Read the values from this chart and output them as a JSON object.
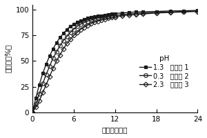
{
  "title": "",
  "xlabel": "时间（小时）",
  "ylabel": "回收率（%）",
  "xlim": [
    0,
    24
  ],
  "ylim": [
    0,
    105
  ],
  "xticks": [
    0,
    6,
    12,
    18,
    24
  ],
  "yticks": [
    0,
    25,
    50,
    75,
    100
  ],
  "legend_title": "pH",
  "series": [
    {
      "label": "1.3   实施例 1",
      "marker": "s",
      "color": "#1a1a1a",
      "fillstyle": "full",
      "markersize": 3.5,
      "markerfacecolor": "#888888",
      "linewidth": 1.0,
      "x": [
        0,
        0.5,
        1,
        1.5,
        2,
        2.5,
        3,
        3.5,
        4,
        4.5,
        5,
        5.5,
        6,
        6.5,
        7,
        7.5,
        8,
        8.5,
        9,
        9.5,
        10,
        10.5,
        11,
        11.5,
        12,
        13,
        14,
        15,
        16,
        18,
        20,
        22,
        24
      ],
      "y": [
        0,
        14,
        27,
        38,
        47,
        55,
        62,
        68,
        73,
        77,
        81,
        84,
        86,
        88,
        89.5,
        91,
        92,
        93,
        93.5,
        94,
        94.5,
        95,
        95.5,
        96,
        96.5,
        97,
        97.5,
        98,
        98.2,
        98.5,
        99,
        99.2,
        99.5
      ]
    },
    {
      "label": "0.3   实施例 2",
      "marker": "o",
      "color": "#1a1a1a",
      "fillstyle": "none",
      "markersize": 4,
      "markerfacecolor": "none",
      "linewidth": 1.0,
      "x": [
        0,
        0.5,
        1,
        1.5,
        2,
        2.5,
        3,
        3.5,
        4,
        4.5,
        5,
        5.5,
        6,
        6.5,
        7,
        7.5,
        8,
        8.5,
        9,
        9.5,
        10,
        10.5,
        11,
        11.5,
        12,
        13,
        14,
        15,
        16,
        18,
        20,
        22,
        24
      ],
      "y": [
        0,
        8,
        18,
        28,
        37,
        45,
        53,
        59,
        65,
        70,
        74,
        78,
        81,
        84,
        86,
        87.5,
        89,
        90,
        91,
        92,
        92.5,
        93,
        93.5,
        94,
        94.5,
        95.5,
        96,
        96.5,
        97,
        97.5,
        98,
        98.5,
        99
      ]
    },
    {
      "label": "2.3   实施例 3",
      "marker": "D",
      "color": "#1a1a1a",
      "fillstyle": "none",
      "markersize": 3.5,
      "markerfacecolor": "none",
      "linewidth": 1.0,
      "x": [
        0,
        0.5,
        1,
        1.5,
        2,
        2.5,
        3,
        3.5,
        4,
        4.5,
        5,
        5.5,
        6,
        6.5,
        7,
        7.5,
        8,
        8.5,
        9,
        9.5,
        10,
        10.5,
        11,
        11.5,
        12,
        13,
        14,
        15,
        16,
        18,
        20,
        22,
        24
      ],
      "y": [
        0,
        5,
        11,
        19,
        27,
        35,
        43,
        50,
        56,
        62,
        67,
        71,
        75,
        78,
        81,
        83,
        85,
        86.5,
        88,
        89,
        90,
        91,
        92,
        92.5,
        93,
        94.5,
        95,
        95.5,
        96,
        97,
        97.5,
        98,
        98.5
      ]
    }
  ],
  "background_color": "#ffffff",
  "font_size": 7.5
}
